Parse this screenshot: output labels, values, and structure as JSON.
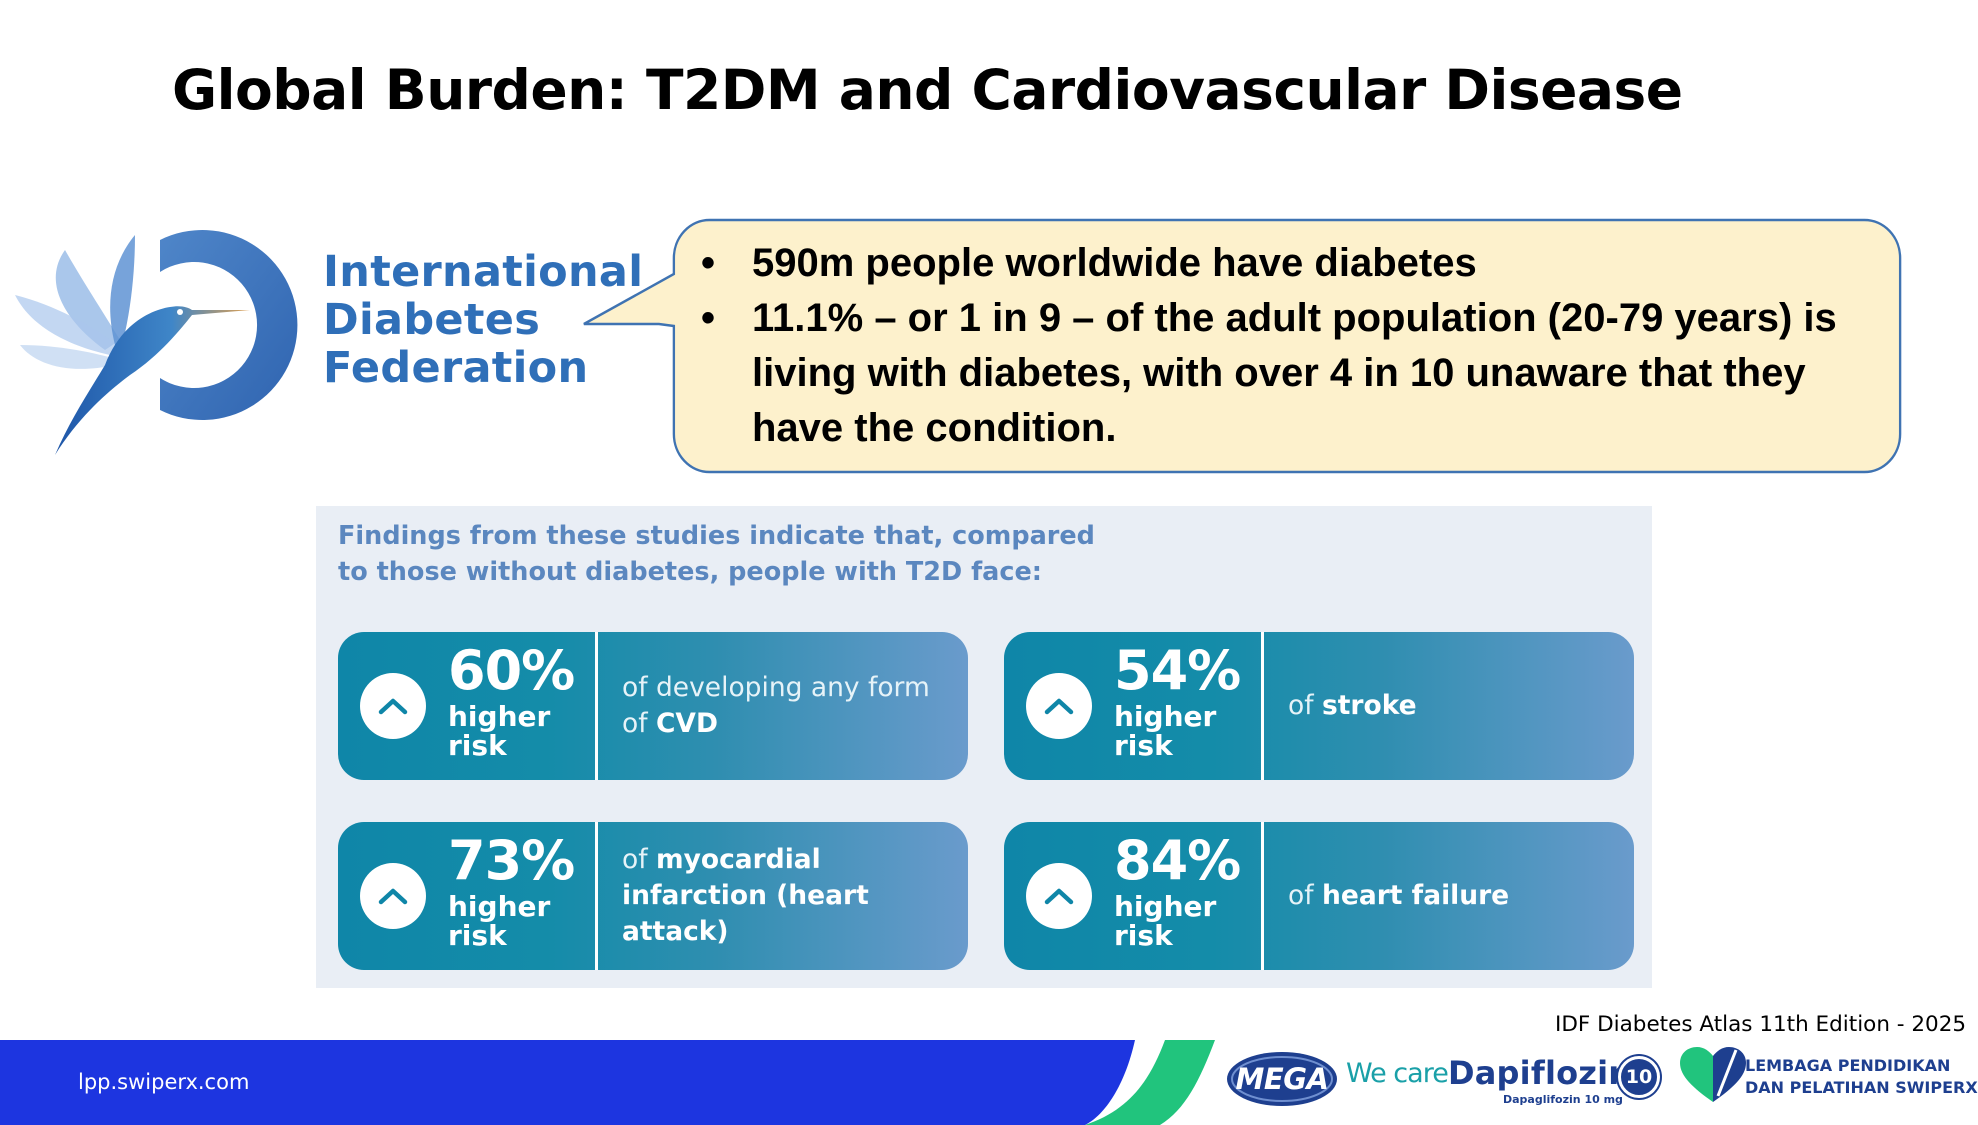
{
  "slide": {
    "title": "Global Burden: T2DM and Cardiovascular Disease"
  },
  "idf": {
    "name_lines": [
      "International",
      "Diabetes",
      "Federation"
    ]
  },
  "bubble": {
    "bullets": [
      "590m people worldwide have diabetes",
      "11.1% – or 1 in 9 – of the adult population (20-79 years) is living with diabetes, with over 4 in 10 unaware that they have the condition."
    ]
  },
  "findings": {
    "intro": "Findings from these studies indicate that, compared to those without diabetes, people with T2D face:",
    "cards": [
      {
        "percent": "60%",
        "higher": "higher",
        "risk": "risk",
        "desc_prefix": "of developing any form of",
        "desc_bold": "CVD"
      },
      {
        "percent": "54%",
        "higher": "higher",
        "risk": "risk",
        "desc_prefix": "of",
        "desc_bold": "stroke"
      },
      {
        "percent": "73%",
        "higher": "higher",
        "risk": "risk",
        "desc_prefix": "of",
        "desc_bold": "myocardial infarction (heart attack)"
      },
      {
        "percent": "84%",
        "higher": "higher",
        "risk": "risk",
        "desc_prefix": "of",
        "desc_bold": "heart failure"
      }
    ]
  },
  "citation": "IDF Diabetes Atlas 11th Edition - 2025",
  "footer": {
    "url": "lpp.swiperx.com",
    "mega": "MEGA",
    "we_care": "We care",
    "brand": "Dapiflozin",
    "brand_sub": "Dapaglifozin 10 mg",
    "badge": "10",
    "lpp_line1": "LEMBAGA PENDIDIKAN",
    "lpp_line2": "DAN PELATIHAN SWIPERX"
  },
  "colors": {
    "idf_blue": "#2f6fb8",
    "bubble_fill": "#fdf1cc",
    "bubble_stroke": "#3f73b2",
    "panel_bg": "#e9eef5",
    "card_teal": "#0f86a8",
    "footer_blue": "#1d35e0",
    "footer_green": "#21c47d",
    "brand_navy": "#1e3f8f"
  }
}
